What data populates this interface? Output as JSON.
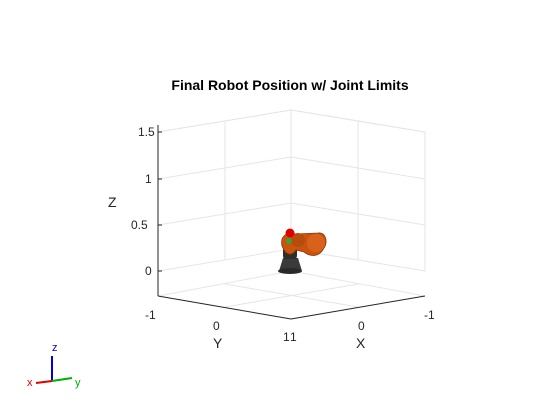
{
  "figure": {
    "title": "Final Robot Position w/ Joint Limits",
    "axes": {
      "x_label": "X",
      "y_label": "Y",
      "z_label": "Z",
      "z_ticks": [
        "1.5",
        "1",
        "0.5",
        "0"
      ],
      "y_ticks": [
        "-1",
        "0",
        "1"
      ],
      "x_ticks": [
        "1",
        "0",
        "-1"
      ]
    },
    "triad": {
      "x": "x",
      "y": "y",
      "z": "z"
    },
    "colors": {
      "robot_body": "#c8540e",
      "robot_base": "#3a3a3a",
      "end_effector_marker": "#e00000",
      "triad_x": "#e00000",
      "triad_y": "#00b000",
      "triad_z": "#0000e0"
    }
  }
}
